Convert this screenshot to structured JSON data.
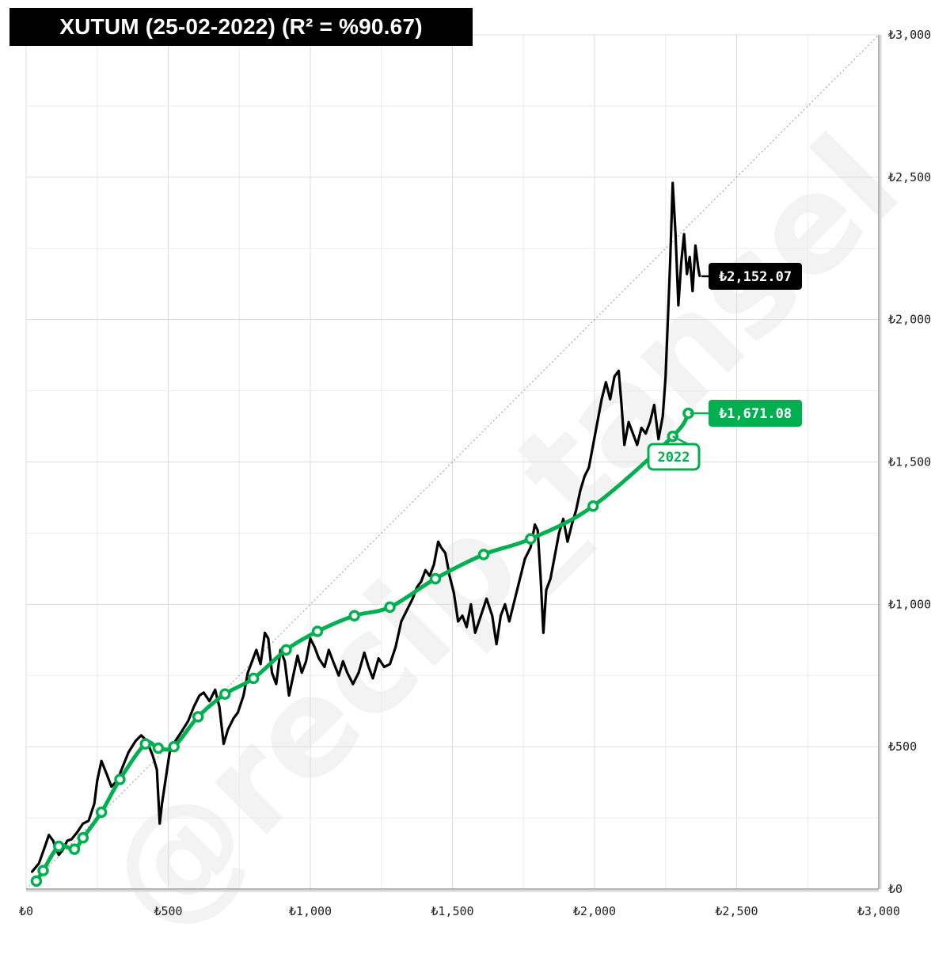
{
  "chart_data": {
    "type": "line",
    "title": "XUTUM (25-02-2022) (R² = %90.67)",
    "x_ticks": [
      "₺0",
      "₺500",
      "₺1,000",
      "₺1,500",
      "₺2,000",
      "₺2,500",
      "₺3,000"
    ],
    "y_ticks": [
      "₺0",
      "₺500",
      "₺1,000",
      "₺1,500",
      "₺2,000",
      "₺2,500",
      "₺3,000"
    ],
    "xlim": [
      0,
      3000
    ],
    "ylim": [
      0,
      3000
    ],
    "grid": true,
    "reference_line": "y = x (diagonal)",
    "series": [
      {
        "role": "index_path",
        "color": "#000000",
        "values_xy": [
          [
            20,
            60
          ],
          [
            45,
            90
          ],
          [
            70,
            160
          ],
          [
            80,
            190
          ],
          [
            95,
            170
          ],
          [
            105,
            140
          ],
          [
            115,
            120
          ],
          [
            130,
            140
          ],
          [
            145,
            170
          ],
          [
            160,
            175
          ],
          [
            180,
            200
          ],
          [
            200,
            230
          ],
          [
            220,
            240
          ],
          [
            240,
            300
          ],
          [
            250,
            380
          ],
          [
            265,
            450
          ],
          [
            285,
            400
          ],
          [
            300,
            360
          ],
          [
            320,
            380
          ],
          [
            340,
            430
          ],
          [
            360,
            480
          ],
          [
            385,
            520
          ],
          [
            405,
            540
          ],
          [
            425,
            520
          ],
          [
            445,
            470
          ],
          [
            460,
            420
          ],
          [
            470,
            230
          ],
          [
            478,
            300
          ],
          [
            490,
            380
          ],
          [
            505,
            480
          ],
          [
            525,
            520
          ],
          [
            545,
            550
          ],
          [
            570,
            590
          ],
          [
            590,
            640
          ],
          [
            610,
            680
          ],
          [
            625,
            690
          ],
          [
            645,
            660
          ],
          [
            665,
            700
          ],
          [
            680,
            640
          ],
          [
            695,
            510
          ],
          [
            710,
            560
          ],
          [
            730,
            600
          ],
          [
            745,
            620
          ],
          [
            765,
            680
          ],
          [
            780,
            760
          ],
          [
            795,
            800
          ],
          [
            810,
            840
          ],
          [
            825,
            790
          ],
          [
            840,
            900
          ],
          [
            852,
            880
          ],
          [
            865,
            760
          ],
          [
            880,
            720
          ],
          [
            895,
            840
          ],
          [
            910,
            800
          ],
          [
            925,
            680
          ],
          [
            940,
            750
          ],
          [
            955,
            820
          ],
          [
            970,
            760
          ],
          [
            985,
            800
          ],
          [
            1000,
            880
          ],
          [
            1015,
            850
          ],
          [
            1030,
            810
          ],
          [
            1050,
            780
          ],
          [
            1065,
            840
          ],
          [
            1080,
            800
          ],
          [
            1100,
            750
          ],
          [
            1115,
            800
          ],
          [
            1130,
            760
          ],
          [
            1150,
            720
          ],
          [
            1170,
            760
          ],
          [
            1190,
            830
          ],
          [
            1205,
            780
          ],
          [
            1220,
            740
          ],
          [
            1240,
            810
          ],
          [
            1260,
            780
          ],
          [
            1280,
            790
          ],
          [
            1300,
            850
          ],
          [
            1320,
            940
          ],
          [
            1340,
            980
          ],
          [
            1360,
            1020
          ],
          [
            1375,
            1060
          ],
          [
            1390,
            1080
          ],
          [
            1405,
            1120
          ],
          [
            1420,
            1100
          ],
          [
            1435,
            1140
          ],
          [
            1450,
            1220
          ],
          [
            1460,
            1200
          ],
          [
            1475,
            1180
          ],
          [
            1490,
            1100
          ],
          [
            1505,
            1040
          ],
          [
            1520,
            940
          ],
          [
            1535,
            960
          ],
          [
            1550,
            920
          ],
          [
            1565,
            1000
          ],
          [
            1580,
            900
          ],
          [
            1600,
            960
          ],
          [
            1620,
            1020
          ],
          [
            1640,
            960
          ],
          [
            1655,
            860
          ],
          [
            1670,
            960
          ],
          [
            1685,
            1000
          ],
          [
            1700,
            940
          ],
          [
            1715,
            1000
          ],
          [
            1735,
            1080
          ],
          [
            1755,
            1160
          ],
          [
            1775,
            1200
          ],
          [
            1790,
            1280
          ],
          [
            1800,
            1260
          ],
          [
            1810,
            1100
          ],
          [
            1820,
            900
          ],
          [
            1830,
            1050
          ],
          [
            1845,
            1090
          ],
          [
            1860,
            1170
          ],
          [
            1875,
            1250
          ],
          [
            1890,
            1300
          ],
          [
            1905,
            1220
          ],
          [
            1920,
            1280
          ],
          [
            1935,
            1330
          ],
          [
            1950,
            1400
          ],
          [
            1965,
            1450
          ],
          [
            1980,
            1480
          ],
          [
            1995,
            1560
          ],
          [
            2010,
            1640
          ],
          [
            2025,
            1720
          ],
          [
            2040,
            1780
          ],
          [
            2055,
            1720
          ],
          [
            2070,
            1800
          ],
          [
            2085,
            1820
          ],
          [
            2095,
            1700
          ],
          [
            2105,
            1560
          ],
          [
            2120,
            1640
          ],
          [
            2135,
            1600
          ],
          [
            2150,
            1560
          ],
          [
            2165,
            1620
          ],
          [
            2180,
            1600
          ],
          [
            2195,
            1640
          ],
          [
            2210,
            1700
          ],
          [
            2225,
            1580
          ],
          [
            2240,
            1660
          ],
          [
            2250,
            1800
          ],
          [
            2258,
            2000
          ],
          [
            2266,
            2200
          ],
          [
            2275,
            2480
          ],
          [
            2285,
            2300
          ],
          [
            2295,
            2050
          ],
          [
            2305,
            2200
          ],
          [
            2315,
            2300
          ],
          [
            2325,
            2160
          ],
          [
            2335,
            2220
          ],
          [
            2345,
            2100
          ],
          [
            2355,
            2260
          ],
          [
            2365,
            2180
          ],
          [
            2370,
            2152.07
          ]
        ],
        "end_label": "₺2,152.07"
      },
      {
        "role": "fit_curve",
        "color": "#00b050",
        "values_xy": [
          [
            36,
            28
          ],
          [
            60,
            65
          ],
          [
            115,
            150
          ],
          [
            170,
            140
          ],
          [
            200,
            180
          ],
          [
            265,
            270
          ],
          [
            330,
            385
          ],
          [
            420,
            510
          ],
          [
            465,
            495
          ],
          [
            520,
            500
          ],
          [
            605,
            605
          ],
          [
            700,
            685
          ],
          [
            800,
            740
          ],
          [
            915,
            840
          ],
          [
            1025,
            905
          ],
          [
            1155,
            960
          ],
          [
            1280,
            990
          ],
          [
            1440,
            1090
          ],
          [
            1610,
            1175
          ],
          [
            1775,
            1230
          ],
          [
            1995,
            1345
          ],
          [
            2275,
            1590
          ],
          [
            2330,
            1671.08
          ]
        ],
        "end_label": "₺1,671.08",
        "year_label": "2022"
      }
    ]
  },
  "watermark": "@recip_tansel",
  "colors": {
    "price": "#000000",
    "fit": "#00b050",
    "grid": "#e3e3e3",
    "diagonal": "#999999"
  }
}
